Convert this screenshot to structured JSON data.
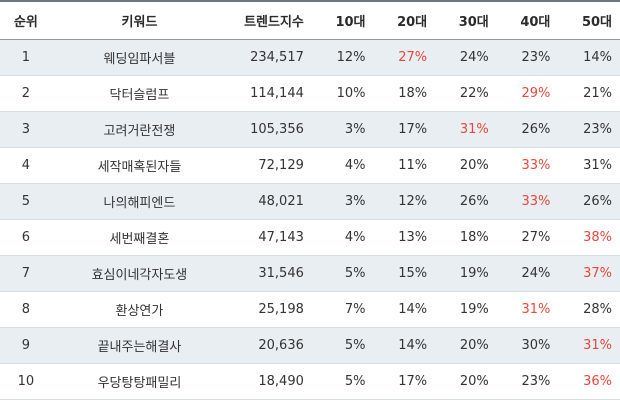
{
  "table": {
    "headers": {
      "rank": "순위",
      "keyword": "키워드",
      "trend": "트렌드지수",
      "age10": "10대",
      "age20": "20대",
      "age30": "30대",
      "age40": "40대",
      "age50": "50대"
    },
    "highlight_color": "#e8483b",
    "shaded_row_color": "#e9eef2",
    "rows": [
      {
        "rank": "1",
        "keyword": "웨딩임파서블",
        "trend": "234,517",
        "age10": "12%",
        "age20": "27%",
        "age30": "24%",
        "age40": "23%",
        "age50": "14%",
        "highlight": "age20"
      },
      {
        "rank": "2",
        "keyword": "닥터슬럼프",
        "trend": "114,144",
        "age10": "10%",
        "age20": "18%",
        "age30": "22%",
        "age40": "29%",
        "age50": "21%",
        "highlight": "age40"
      },
      {
        "rank": "3",
        "keyword": "고려거란전쟁",
        "trend": "105,356",
        "age10": "3%",
        "age20": "17%",
        "age30": "31%",
        "age40": "26%",
        "age50": "23%",
        "highlight": "age30"
      },
      {
        "rank": "4",
        "keyword": "세작매혹된자들",
        "trend": "72,129",
        "age10": "4%",
        "age20": "11%",
        "age30": "20%",
        "age40": "33%",
        "age50": "31%",
        "highlight": "age40"
      },
      {
        "rank": "5",
        "keyword": "나의해피엔드",
        "trend": "48,021",
        "age10": "3%",
        "age20": "12%",
        "age30": "26%",
        "age40": "33%",
        "age50": "26%",
        "highlight": "age40"
      },
      {
        "rank": "6",
        "keyword": "세번째결혼",
        "trend": "47,143",
        "age10": "4%",
        "age20": "13%",
        "age30": "18%",
        "age40": "27%",
        "age50": "38%",
        "highlight": "age50"
      },
      {
        "rank": "7",
        "keyword": "효심이네각자도생",
        "trend": "31,546",
        "age10": "5%",
        "age20": "15%",
        "age30": "19%",
        "age40": "24%",
        "age50": "37%",
        "highlight": "age50"
      },
      {
        "rank": "8",
        "keyword": "환상연가",
        "trend": "25,198",
        "age10": "7%",
        "age20": "14%",
        "age30": "19%",
        "age40": "31%",
        "age50": "28%",
        "highlight": "age40"
      },
      {
        "rank": "9",
        "keyword": "끝내주는해결사",
        "trend": "20,636",
        "age10": "5%",
        "age20": "14%",
        "age30": "20%",
        "age40": "30%",
        "age50": "31%",
        "highlight": "age50"
      },
      {
        "rank": "10",
        "keyword": "우당탕탕패밀리",
        "trend": "18,490",
        "age10": "5%",
        "age20": "17%",
        "age30": "20%",
        "age40": "23%",
        "age50": "36%",
        "highlight": "age50"
      }
    ]
  }
}
